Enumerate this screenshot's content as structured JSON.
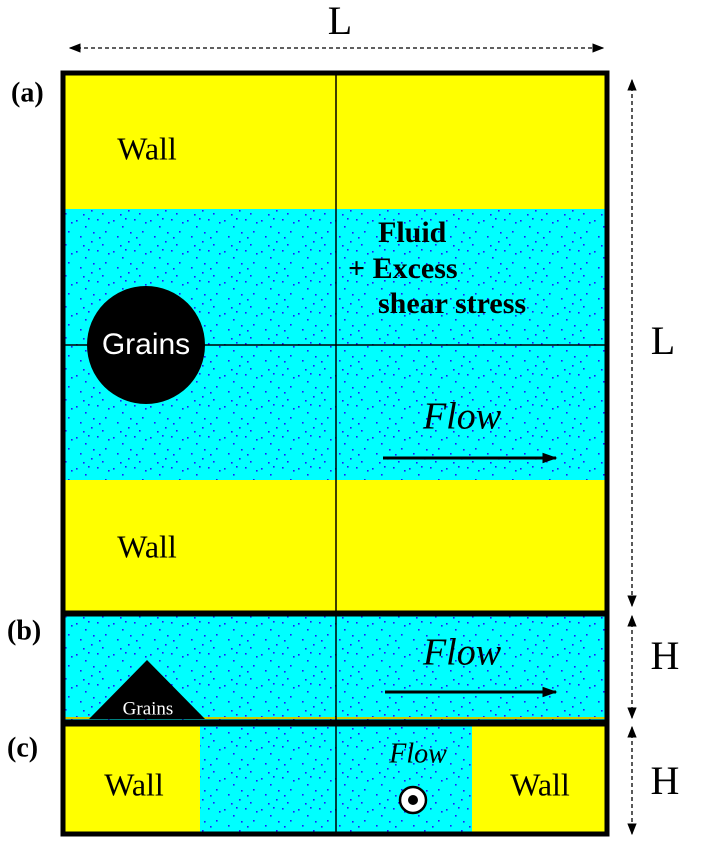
{
  "dimensions": {
    "width_label": "L",
    "a_height_label": "L",
    "b_height_label": "H",
    "c_height_label": "H"
  },
  "panels": [
    {
      "label": "(a)",
      "top_wall": "Wall",
      "fluid": [
        "Fluid",
        "+ Excess",
        "shear stress"
      ],
      "grains": "Grains",
      "flow": "Flow",
      "bottom_wall": "Wall"
    },
    {
      "label": "(b)",
      "flow": "Flow",
      "grains": "Grains"
    },
    {
      "label": "(c)",
      "left_wall": "Wall",
      "flow": "Flow",
      "right_wall": "Wall"
    }
  ]
}
